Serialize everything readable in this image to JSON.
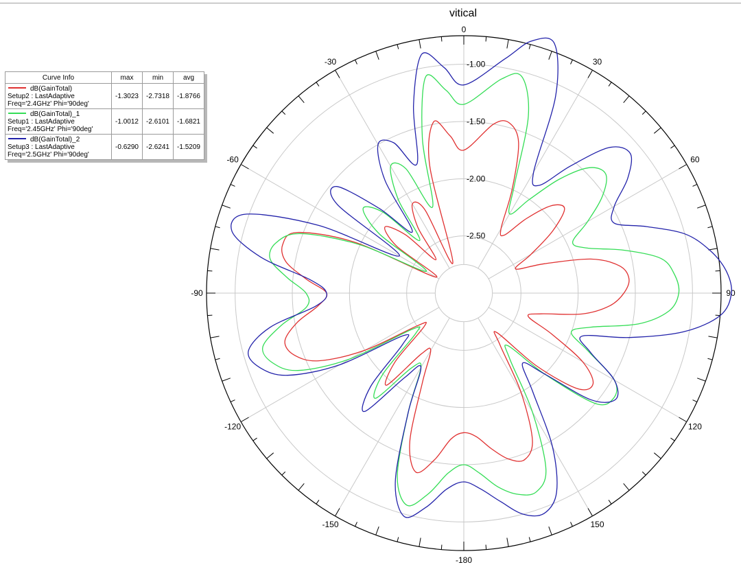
{
  "chart_data": {
    "type": "polar-line",
    "title": "vitical",
    "angle_unit": "deg",
    "angle_ticks": [
      0,
      30,
      60,
      90,
      120,
      150,
      -180,
      -150,
      -120,
      -90,
      -60,
      -30
    ],
    "radial_range": [
      -3.0,
      -0.75
    ],
    "radial_ticks": [
      -1.0,
      -1.5,
      -2.0,
      -2.5
    ],
    "radial_tick_labels": [
      "-1.00",
      "-1.50",
      "-2.00",
      "-2.50"
    ],
    "grid": true,
    "legend": {
      "position": "top-left",
      "headers": [
        "Curve Info",
        "max",
        "min",
        "avg"
      ]
    },
    "series": [
      {
        "name": "dB(GainTotal)",
        "setup": "Setup2 : LastAdaptive",
        "freq": "Freq='2.4GHz' Phi='90deg'",
        "max": "-1.3023",
        "min": "-2.7318",
        "avg": "-1.8766",
        "color": "#e03030",
        "theta": [
          0,
          10,
          15,
          20,
          25,
          30,
          35,
          40,
          45,
          50,
          55,
          60,
          65,
          70,
          75,
          80,
          85,
          90,
          95,
          100,
          105,
          110,
          115,
          120,
          125,
          130,
          135,
          140,
          145,
          150,
          155,
          160,
          165,
          170,
          175,
          180,
          185,
          190,
          195,
          200,
          205,
          210,
          215,
          220,
          225,
          230,
          235,
          240,
          245,
          250,
          255,
          260,
          265,
          270,
          275,
          280,
          285,
          290,
          295,
          300,
          305,
          310,
          315,
          320,
          325,
          330,
          335,
          340,
          345,
          350,
          355,
          360
        ],
        "r": [
          -1.75,
          -1.5,
          -1.46,
          -1.6,
          -2.0,
          -2.35,
          -2.38,
          -2.15,
          -1.92,
          -1.85,
          -2.05,
          -2.32,
          -2.5,
          -2.25,
          -1.85,
          -1.62,
          -1.55,
          -1.6,
          -1.72,
          -1.95,
          -2.3,
          -2.4,
          -2.15,
          -1.8,
          -1.62,
          -1.7,
          -2.1,
          -2.55,
          -2.45,
          -2.0,
          -1.58,
          -1.45,
          -1.5,
          -1.62,
          -1.74,
          -1.78,
          -1.72,
          -1.52,
          -1.38,
          -1.62,
          -2.15,
          -2.42,
          -2.35,
          -1.95,
          -2.15,
          -2.55,
          -2.5,
          -2.0,
          -1.6,
          -1.42,
          -1.38,
          -1.52,
          -1.72,
          -1.8,
          -1.62,
          -1.42,
          -1.36,
          -1.45,
          -1.95,
          -2.72,
          -2.28,
          -2.1,
          -2.28,
          -2.62,
          -2.3,
          -2.1,
          -2.2,
          -2.72,
          -1.85,
          -1.48,
          -1.62,
          -1.75
        ]
      },
      {
        "name": "dB(GainTotal)_1",
        "setup": "Setup1 : LastAdaptive",
        "freq": "Freq='2.45GHz' Phi='90deg'",
        "max": "-1.0012",
        "min": "-2.6101",
        "avg": "-1.6821",
        "color": "#33dd55",
        "theta": [
          0,
          10,
          15,
          20,
          25,
          30,
          35,
          40,
          45,
          50,
          55,
          60,
          65,
          70,
          75,
          80,
          85,
          90,
          95,
          100,
          105,
          110,
          115,
          120,
          125,
          130,
          135,
          140,
          145,
          150,
          155,
          160,
          165,
          170,
          175,
          180,
          185,
          190,
          195,
          200,
          205,
          210,
          215,
          220,
          225,
          230,
          235,
          240,
          245,
          250,
          255,
          260,
          265,
          270,
          275,
          280,
          285,
          290,
          295,
          300,
          305,
          310,
          315,
          320,
          325,
          330,
          335,
          340,
          345,
          350,
          355,
          360
        ],
        "r": [
          -1.35,
          -1.1,
          -1.04,
          -1.35,
          -1.95,
          -2.2,
          -2.0,
          -1.7,
          -1.45,
          -1.38,
          -1.52,
          -1.75,
          -1.95,
          -1.85,
          -1.55,
          -1.25,
          -1.15,
          -1.12,
          -1.2,
          -1.45,
          -1.85,
          -2.0,
          -1.8,
          -1.48,
          -1.4,
          -1.5,
          -2.0,
          -2.4,
          -2.3,
          -1.8,
          -1.3,
          -1.15,
          -1.18,
          -1.28,
          -1.42,
          -1.5,
          -1.42,
          -1.22,
          -1.08,
          -1.3,
          -1.85,
          -2.25,
          -2.2,
          -1.8,
          -2.0,
          -2.45,
          -2.45,
          -1.85,
          -1.4,
          -1.22,
          -1.18,
          -1.38,
          -1.62,
          -1.62,
          -1.45,
          -1.28,
          -1.3,
          -1.48,
          -2.0,
          -2.62,
          -2.1,
          -1.85,
          -2.0,
          -2.4,
          -2.0,
          -1.72,
          -1.8,
          -2.2,
          -1.6,
          -1.08,
          -1.22,
          -1.35
        ]
      },
      {
        "name": "dB(GainTotal)_2",
        "setup": "Setup3 : LastAdaptive",
        "freq": "Freq='2.5GHz' Phi='90deg'",
        "max": "-0.6290",
        "min": "-2.6241",
        "avg": "-1.5209",
        "color": "#2222aa",
        "theta": [
          0,
          10,
          15,
          20,
          25,
          30,
          35,
          40,
          45,
          50,
          55,
          60,
          65,
          70,
          75,
          80,
          85,
          90,
          95,
          100,
          105,
          110,
          115,
          120,
          125,
          130,
          135,
          140,
          145,
          150,
          155,
          160,
          165,
          170,
          175,
          180,
          185,
          190,
          195,
          200,
          205,
          210,
          215,
          220,
          225,
          230,
          235,
          240,
          245,
          250,
          255,
          260,
          265,
          270,
          275,
          280,
          285,
          290,
          295,
          300,
          305,
          310,
          315,
          320,
          325,
          330,
          335,
          340,
          345,
          350,
          355,
          360
        ],
        "r": [
          -1.18,
          -0.92,
          -0.72,
          -0.68,
          -1.1,
          -1.78,
          -1.85,
          -1.55,
          -1.2,
          -1.1,
          -1.25,
          -1.48,
          -1.55,
          -1.3,
          -1.0,
          -0.82,
          -0.7,
          -0.66,
          -0.75,
          -1.05,
          -1.5,
          -1.9,
          -1.78,
          -1.48,
          -1.38,
          -1.55,
          -2.0,
          -2.2,
          -1.95,
          -1.45,
          -1.08,
          -0.95,
          -1.0,
          -1.15,
          -1.28,
          -1.35,
          -1.28,
          -1.1,
          -0.98,
          -1.25,
          -1.85,
          -2.25,
          -2.1,
          -1.65,
          -1.85,
          -2.3,
          -2.35,
          -1.75,
          -1.3,
          -1.1,
          -1.05,
          -1.28,
          -1.7,
          -1.8,
          -1.65,
          -1.2,
          -0.9,
          -0.98,
          -1.6,
          -2.35,
          -1.65,
          -1.55,
          -1.95,
          -2.3,
          -1.8,
          -1.5,
          -1.55,
          -1.8,
          -1.3,
          -0.88,
          -1.02,
          -1.18
        ]
      }
    ]
  }
}
